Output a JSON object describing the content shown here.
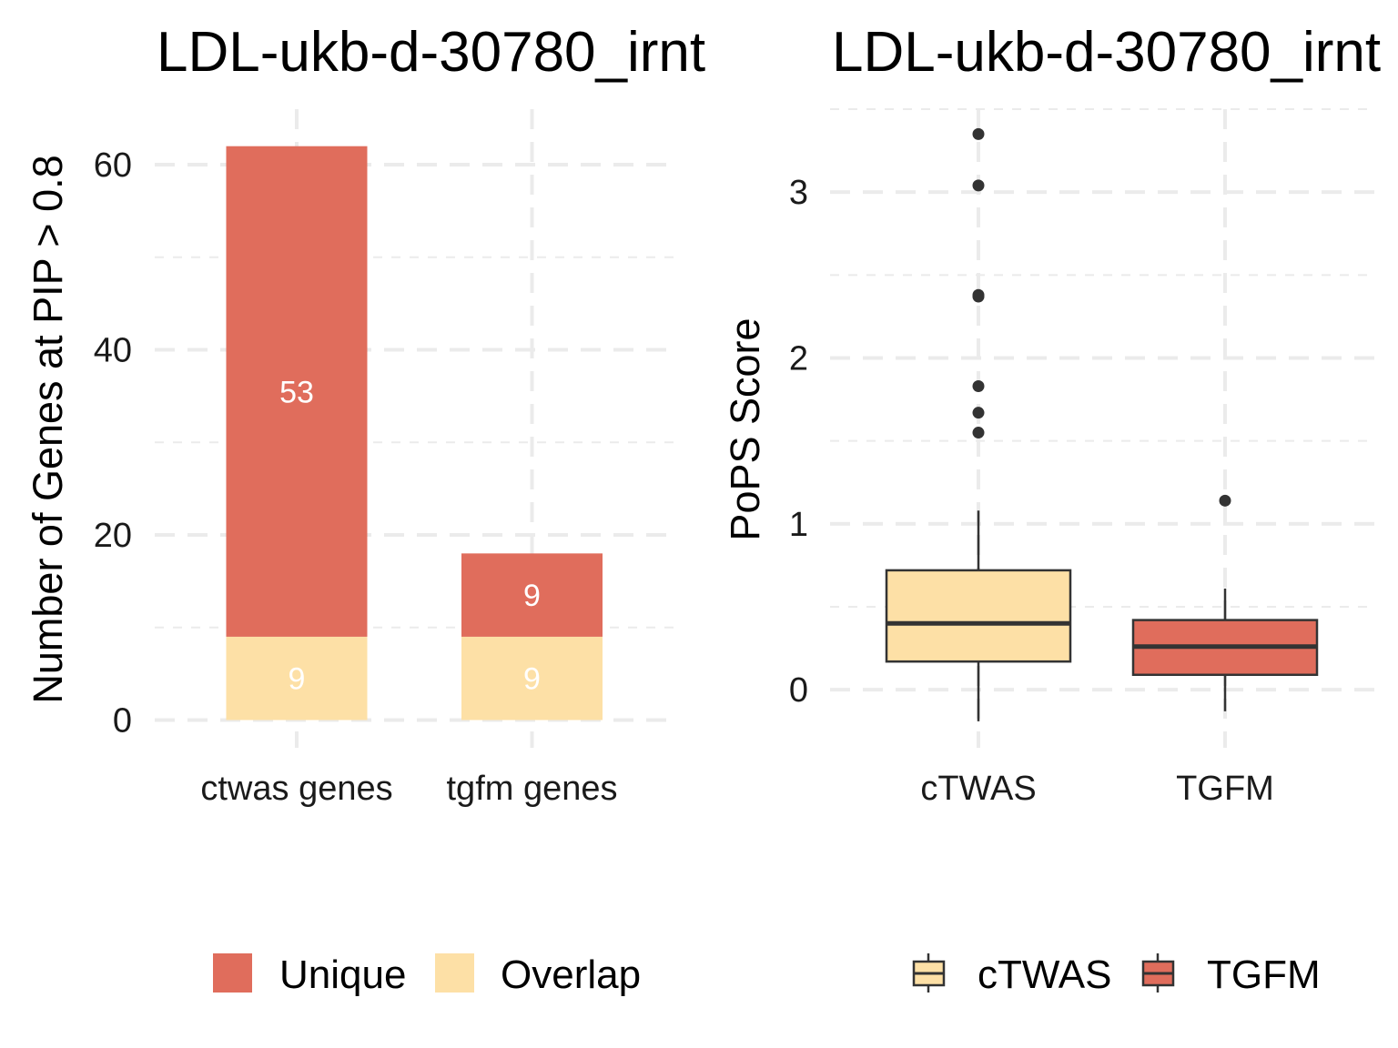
{
  "chart_data": [
    {
      "type": "bar",
      "stacked": true,
      "title": "LDL-ukb-d-30780_irnt",
      "xlabel": "",
      "ylabel": "Number of Genes at PIP > 0.8",
      "categories": [
        "ctwas genes",
        "tgfm genes"
      ],
      "series": [
        {
          "name": "Overlap",
          "values": [
            9,
            9
          ],
          "color": "#FDE0A6"
        },
        {
          "name": "Unique",
          "values": [
            53,
            9
          ],
          "color": "#E06D5C"
        }
      ],
      "ylim": [
        -3,
        66
      ],
      "yticks": [
        0,
        20,
        40,
        60
      ],
      "legend": {
        "position": "bottom",
        "order": [
          "Unique",
          "Overlap"
        ]
      }
    },
    {
      "type": "box",
      "title": "LDL-ukb-d-30780_irnt",
      "xlabel": "",
      "ylabel": "PoPS Score",
      "categories": [
        "cTWAS",
        "TGFM"
      ],
      "boxes": [
        {
          "name": "cTWAS",
          "color": "#FDE0A6",
          "whisker_low": -0.19,
          "q1": 0.17,
          "median": 0.4,
          "q3": 0.72,
          "whisker_high": 1.08,
          "outliers": [
            1.55,
            1.67,
            1.83,
            2.37,
            2.38,
            3.04,
            3.35
          ]
        },
        {
          "name": "TGFM",
          "color": "#E06D5C",
          "whisker_low": -0.13,
          "q1": 0.09,
          "median": 0.26,
          "q3": 0.42,
          "whisker_high": 0.61,
          "outliers": [
            1.14
          ]
        }
      ],
      "ylim": [
        -0.35,
        3.5
      ],
      "yticks": [
        0,
        1,
        2,
        3
      ],
      "legend": {
        "position": "bottom",
        "order": [
          "cTWAS",
          "TGFM"
        ]
      }
    }
  ],
  "colors": {
    "unique": "#E06D5C",
    "overlap": "#FDE0A6",
    "box_line": "#333333",
    "grid": "#ebebeb"
  }
}
